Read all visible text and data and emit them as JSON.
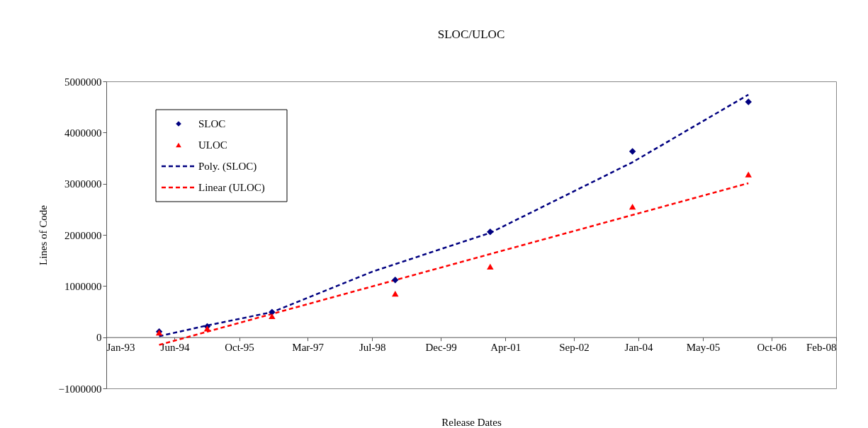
{
  "chart_data": {
    "type": "scatter",
    "title": "SLOC/ULOC",
    "xlabel": "Release Dates",
    "ylabel": "Lines of Code",
    "xlim": [
      "1993-01-01",
      "2008-02-01"
    ],
    "xticks": [
      {
        "value": "1993-01-01",
        "label": "Jan-93"
      },
      {
        "value": "1994-06-01",
        "label": "Jun-94"
      },
      {
        "value": "1995-10-01",
        "label": "Oct-95"
      },
      {
        "value": "1997-03-01",
        "label": "Mar-97"
      },
      {
        "value": "1998-07-01",
        "label": "Jul-98"
      },
      {
        "value": "1999-12-01",
        "label": "Dec-99"
      },
      {
        "value": "2001-04-01",
        "label": "Apr-01"
      },
      {
        "value": "2002-09-01",
        "label": "Sep-02"
      },
      {
        "value": "2004-01-01",
        "label": "Jan-04"
      },
      {
        "value": "2005-05-01",
        "label": "May-05"
      },
      {
        "value": "2006-10-01",
        "label": "Oct-06"
      },
      {
        "value": "2008-02-01",
        "label": "Feb-08"
      }
    ],
    "ylim": [
      -1000000,
      5000000
    ],
    "yticks": [
      -1000000,
      0,
      1000000,
      2000000,
      3000000,
      4000000,
      5000000
    ],
    "x": [
      "1994-02-04",
      "1995-02-02",
      "1996-06-05",
      "1998-12-22",
      "2000-12-08",
      "2003-11-17",
      "2006-04-10"
    ],
    "series": [
      {
        "name": "SLOC",
        "marker": "diamond",
        "color": "#000080",
        "values": [
          110000,
          210000,
          490000,
          1120000,
          2060000,
          3630000,
          4600000
        ]
      },
      {
        "name": "ULOC",
        "marker": "triangle",
        "color": "#ff0000",
        "values": [
          90000,
          170000,
          410000,
          850000,
          1380000,
          2550000,
          3180000
        ]
      },
      {
        "name": "Poly. (SLOC)",
        "type": "line",
        "marker": "none",
        "line_style": "dashed",
        "color": "#000080",
        "x": [
          "1994-02-04",
          "1995-02-02",
          "1996-06-05",
          "1998-07-01",
          "2000-12-08",
          "2003-11-17",
          "2006-04-10"
        ],
        "values": [
          20000,
          230000,
          490000,
          1280000,
          2040000,
          3420000,
          4740000
        ]
      },
      {
        "name": "Linear (ULOC)",
        "type": "line",
        "marker": "none",
        "line_style": "dashed",
        "color": "#ff0000",
        "x": [
          "1994-02-04",
          "2006-04-10"
        ],
        "values": [
          -150000,
          3010000
        ]
      }
    ],
    "grid": false,
    "legend": "top left"
  }
}
